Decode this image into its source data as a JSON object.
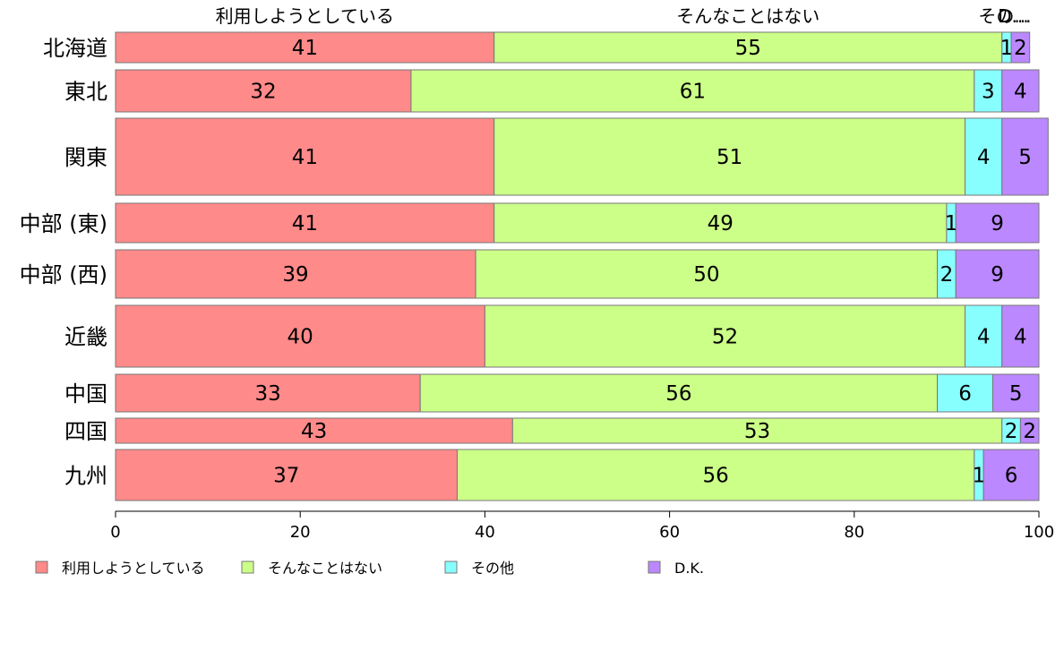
{
  "chart_data": {
    "type": "bar",
    "orientation": "horizontal",
    "stacked": true,
    "categories": [
      "北海道",
      "東北",
      "関東",
      "中部 (東)",
      "中部 (西)",
      "近畿",
      "中国",
      "四国",
      "九州"
    ],
    "series": [
      {
        "name": "利用しようとしている",
        "color": "#ff8a8a",
        "values": [
          41,
          32,
          41,
          41,
          39,
          40,
          33,
          43,
          37
        ]
      },
      {
        "name": "そんなことはない",
        "color": "#ccff88",
        "values": [
          55,
          61,
          51,
          49,
          50,
          52,
          56,
          53,
          56
        ]
      },
      {
        "name": "その他",
        "color": "#88ffff",
        "values": [
          1,
          3,
          4,
          1,
          2,
          4,
          6,
          2,
          1
        ]
      },
      {
        "name": "D.K.",
        "color": "#bb88ff",
        "values": [
          2,
          4,
          5,
          9,
          9,
          4,
          5,
          2,
          6
        ]
      }
    ],
    "top_labels": [
      "利用しようとしている",
      "そんなことはない",
      "その...",
      "D..."
    ],
    "xlim": [
      0,
      100
    ],
    "xticks": [
      "0",
      "20",
      "40",
      "60",
      "80",
      "100"
    ],
    "grid": false,
    "legend_position": "bottom"
  }
}
